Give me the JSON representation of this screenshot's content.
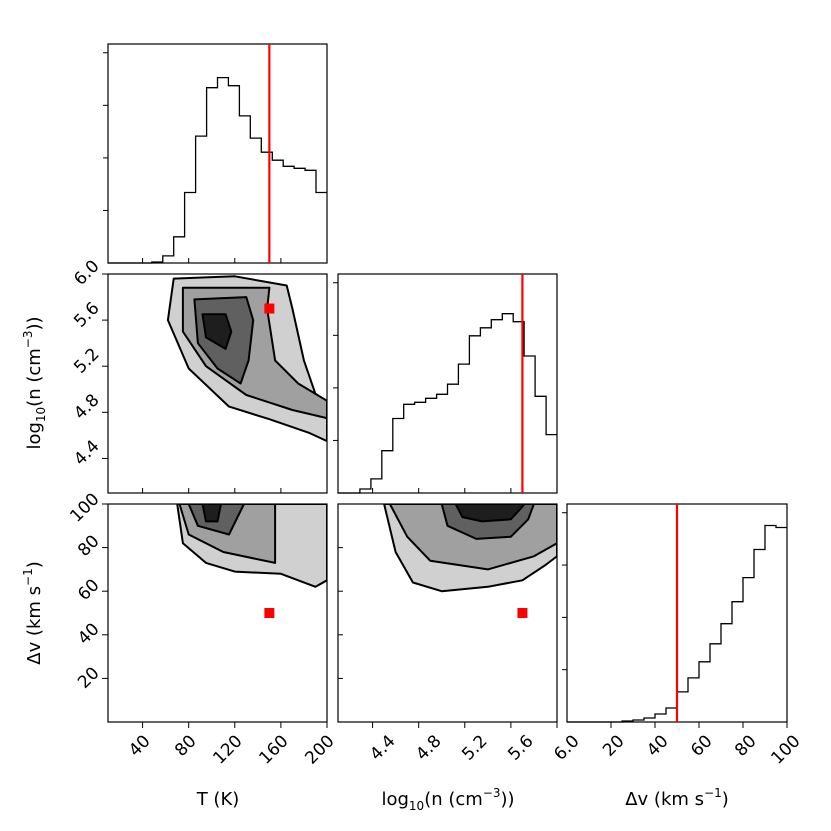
{
  "colors": {
    "truth": "#ff0000",
    "line": "#000000",
    "levels": [
      "#d0d0d0",
      "#a0a0a0",
      "#606060",
      "#1e1e1e"
    ]
  },
  "chart_data": {
    "type": "corner",
    "parameters": [
      {
        "key": "T",
        "label_main": "T (K)",
        "range": [
          10,
          200
        ],
        "ticks": [
          40,
          80,
          120,
          160,
          200
        ],
        "truth": 150
      },
      {
        "key": "logn",
        "label_main": "log",
        "label_sub": "10",
        "label_rest": "(n (cm",
        "label_sup": "−3",
        "label_end": "))",
        "range": [
          4.1,
          6.0
        ],
        "ticks": [
          4.4,
          4.8,
          5.2,
          5.6,
          6.0
        ],
        "truth": 5.7
      },
      {
        "key": "dv",
        "label_main": "Δv (km s",
        "label_sup": "−1",
        "label_end": ")",
        "range": [
          0,
          100
        ],
        "ticks": [
          20,
          40,
          60,
          80,
          100
        ],
        "truth": 50
      }
    ],
    "tick_labels": {
      "T": [
        "40",
        "80",
        "120",
        "160",
        "200"
      ],
      "logn": [
        "4.4",
        "4.8",
        "5.2",
        "5.6",
        "6.0"
      ],
      "dv": [
        "20",
        "40",
        "60",
        "80",
        "100"
      ]
    },
    "histograms": {
      "T": {
        "edges": [
          10,
          19.5,
          29,
          38.5,
          48,
          57.5,
          67,
          76.5,
          86,
          95.5,
          105,
          114.5,
          124,
          133.5,
          143,
          152.5,
          162,
          171.5,
          181,
          190.5,
          200
        ],
        "counts": [
          0,
          0,
          0,
          0,
          0.005,
          0.035,
          0.13,
          0.35,
          0.63,
          0.87,
          0.92,
          0.88,
          0.73,
          0.62,
          0.55,
          0.51,
          0.48,
          0.47,
          0.46,
          0.35
        ]
      },
      "logn": {
        "edges": [
          4.1,
          4.195,
          4.29,
          4.385,
          4.48,
          4.575,
          4.67,
          4.765,
          4.86,
          4.955,
          5.05,
          5.145,
          5.24,
          5.335,
          5.43,
          5.525,
          5.62,
          5.715,
          5.81,
          5.905,
          6.0
        ],
        "counts": [
          0,
          0,
          0.02,
          0.07,
          0.21,
          0.37,
          0.44,
          0.45,
          0.47,
          0.49,
          0.54,
          0.64,
          0.78,
          0.82,
          0.86,
          0.89,
          0.85,
          0.68,
          0.48,
          0.29
        ]
      },
      "dv": {
        "edges": [
          0,
          5,
          10,
          15,
          20,
          25,
          30,
          35,
          40,
          45,
          50,
          55,
          60,
          65,
          70,
          75,
          80,
          85,
          90,
          95,
          100
        ],
        "counts": [
          0,
          0,
          0,
          0,
          0,
          0.005,
          0.01,
          0.02,
          0.04,
          0.07,
          0.15,
          0.22,
          0.3,
          0.39,
          0.49,
          0.6,
          0.72,
          0.86,
          0.98,
          0.97
        ]
      }
    },
    "contours": {
      "T_logn": [
        [
          [
            67,
            5.96
          ],
          [
            62,
            5.6
          ],
          [
            80,
            5.18
          ],
          [
            115,
            4.85
          ],
          [
            150,
            4.74
          ],
          [
            185,
            4.62
          ],
          [
            200,
            4.55
          ],
          [
            200,
            4.9
          ],
          [
            192,
            4.9
          ],
          [
            180,
            5.25
          ],
          [
            170,
            5.7
          ],
          [
            165,
            5.9
          ],
          [
            120,
            5.98
          ]
        ],
        [
          [
            75,
            5.88
          ],
          [
            75,
            5.5
          ],
          [
            95,
            5.2
          ],
          [
            130,
            4.95
          ],
          [
            170,
            4.82
          ],
          [
            200,
            4.75
          ],
          [
            200,
            4.9
          ],
          [
            175,
            5.05
          ],
          [
            155,
            5.25
          ],
          [
            148,
            5.7
          ],
          [
            150,
            5.88
          ]
        ],
        [
          [
            85,
            5.78
          ],
          [
            88,
            5.4
          ],
          [
            105,
            5.18
          ],
          [
            125,
            5.05
          ],
          [
            132,
            5.25
          ],
          [
            136,
            5.6
          ],
          [
            130,
            5.8
          ]
        ],
        [
          [
            92,
            5.65
          ],
          [
            95,
            5.45
          ],
          [
            112,
            5.35
          ],
          [
            117,
            5.5
          ],
          [
            112,
            5.65
          ]
        ]
      ],
      "T_dv": [
        [
          [
            70,
            100
          ],
          [
            75,
            82
          ],
          [
            95,
            73
          ],
          [
            120,
            69
          ],
          [
            160,
            68
          ],
          [
            190,
            62
          ],
          [
            200,
            65
          ],
          [
            200,
            100
          ]
        ],
        [
          [
            72,
            100
          ],
          [
            80,
            86
          ],
          [
            110,
            78
          ],
          [
            155,
            73
          ],
          [
            155,
            100
          ]
        ],
        [
          [
            80,
            100
          ],
          [
            88,
            90
          ],
          [
            115,
            86
          ],
          [
            128,
            100
          ]
        ],
        [
          [
            92,
            100
          ],
          [
            95,
            92
          ],
          [
            105,
            92
          ],
          [
            108,
            100
          ]
        ]
      ],
      "logn_dv": [
        [
          [
            4.5,
            100
          ],
          [
            4.6,
            78
          ],
          [
            4.75,
            64
          ],
          [
            5.0,
            60
          ],
          [
            5.4,
            62
          ],
          [
            5.7,
            65
          ],
          [
            5.9,
            72
          ],
          [
            6.0,
            76
          ],
          [
            6.0,
            100
          ]
        ],
        [
          [
            4.55,
            100
          ],
          [
            4.7,
            85
          ],
          [
            4.9,
            74
          ],
          [
            5.4,
            70
          ],
          [
            5.8,
            76
          ],
          [
            6.0,
            82
          ],
          [
            6.0,
            100
          ]
        ],
        [
          [
            5.0,
            100
          ],
          [
            5.05,
            90
          ],
          [
            5.3,
            84
          ],
          [
            5.6,
            85
          ],
          [
            5.75,
            93
          ],
          [
            5.8,
            100
          ]
        ],
        [
          [
            5.12,
            100
          ],
          [
            5.18,
            94
          ],
          [
            5.35,
            92
          ],
          [
            5.6,
            93
          ],
          [
            5.72,
            100
          ]
        ]
      ]
    },
    "truth_points": {
      "T_logn": [
        150,
        5.7
      ],
      "T_dv": [
        150,
        50
      ],
      "logn_dv": [
        5.7,
        50
      ]
    }
  }
}
